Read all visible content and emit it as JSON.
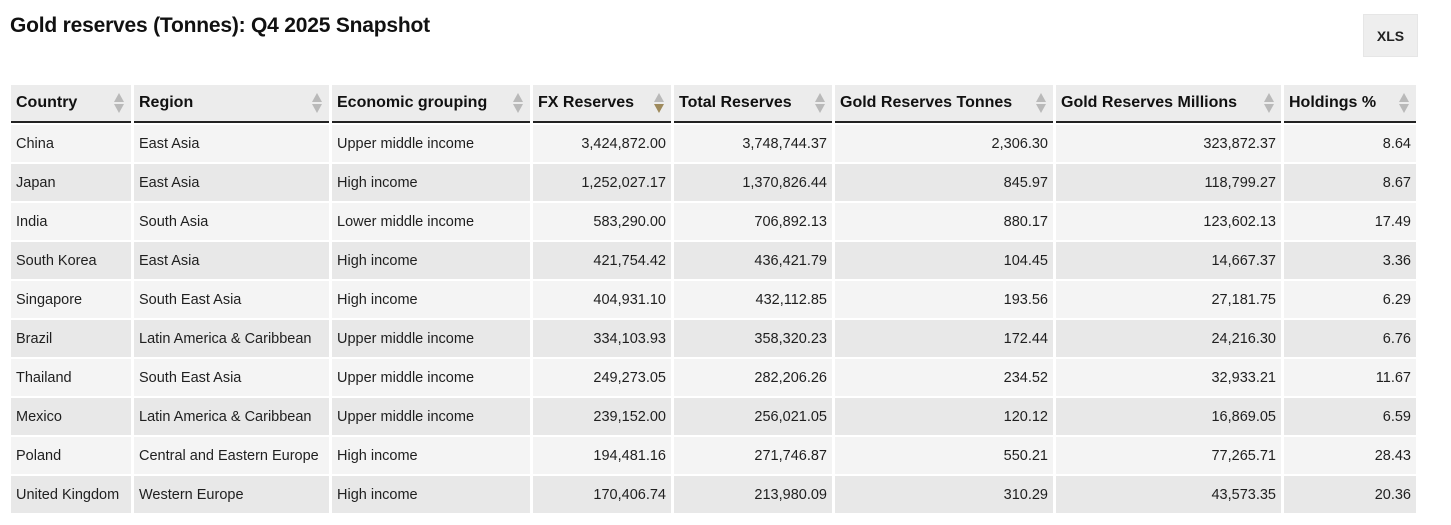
{
  "title": "Gold reserves (Tonnes): Q4 2025 Snapshot",
  "export_label": "XLS",
  "columns": [
    {
      "label": "Country",
      "sort": "none"
    },
    {
      "label": "Region",
      "sort": "none"
    },
    {
      "label": "Economic grouping",
      "sort": "none"
    },
    {
      "label": "FX Reserves",
      "sort": "descending"
    },
    {
      "label": "Total Reserves",
      "sort": "none"
    },
    {
      "label": "Gold Reserves Tonnes",
      "sort": "none"
    },
    {
      "label": "Gold Reserves Millions",
      "sort": "none"
    },
    {
      "label": "Holdings %",
      "sort": "none"
    }
  ],
  "rows": [
    [
      "China",
      "East Asia",
      "Upper middle income",
      "3,424,872.00",
      "3,748,744.37",
      "2,306.30",
      "323,872.37",
      "8.64"
    ],
    [
      "Japan",
      "East Asia",
      "High income",
      "1,252,027.17",
      "1,370,826.44",
      "845.97",
      "118,799.27",
      "8.67"
    ],
    [
      "India",
      "South Asia",
      "Lower middle income",
      "583,290.00",
      "706,892.13",
      "880.17",
      "123,602.13",
      "17.49"
    ],
    [
      "South Korea",
      "East Asia",
      "High income",
      "421,754.42",
      "436,421.79",
      "104.45",
      "14,667.37",
      "3.36"
    ],
    [
      "Singapore",
      "South East Asia",
      "High income",
      "404,931.10",
      "432,112.85",
      "193.56",
      "27,181.75",
      "6.29"
    ],
    [
      "Brazil",
      "Latin America & Caribbean",
      "Upper middle income",
      "334,103.93",
      "358,320.23",
      "172.44",
      "24,216.30",
      "6.76"
    ],
    [
      "Thailand",
      "South East Asia",
      "Upper middle income",
      "249,273.05",
      "282,206.26",
      "234.52",
      "32,933.21",
      "11.67"
    ],
    [
      "Mexico",
      "Latin America & Caribbean",
      "Upper middle income",
      "239,152.00",
      "256,021.05",
      "120.12",
      "16,869.05",
      "6.59"
    ],
    [
      "Poland",
      "Central and Eastern Europe",
      "High income",
      "194,481.16",
      "271,746.87",
      "550.21",
      "77,265.71",
      "28.43"
    ],
    [
      "United Kingdom",
      "Western Europe",
      "High income",
      "170,406.74",
      "213,980.09",
      "310.29",
      "43,573.35",
      "20.36"
    ]
  ],
  "colors": {
    "header_bg": "#ececec",
    "row_odd": "#f4f4f4",
    "row_even": "#e8e8e8",
    "sort_arrow": "#b9b9b9",
    "sort_active": "#9e8a5c"
  }
}
